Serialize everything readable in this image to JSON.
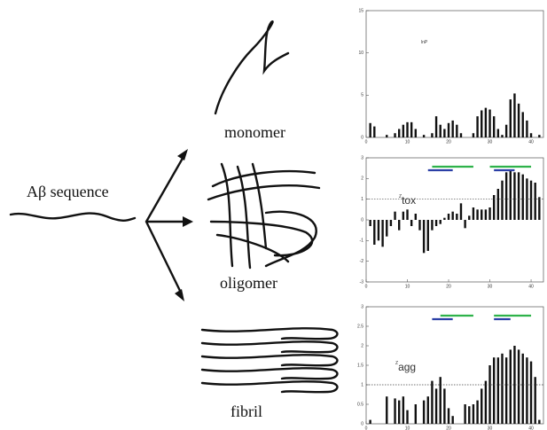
{
  "diagram": {
    "sequence_label": "Aβ sequence",
    "states": [
      "monomer",
      "oligomer",
      "fibril"
    ]
  },
  "chart_data": [
    {
      "type": "bar",
      "annotation": {
        "main": "lnP"
      },
      "x": [
        1,
        2,
        3,
        4,
        5,
        6,
        7,
        8,
        9,
        10,
        11,
        12,
        13,
        14,
        15,
        16,
        17,
        18,
        19,
        20,
        21,
        22,
        23,
        24,
        25,
        26,
        27,
        28,
        29,
        30,
        31,
        32,
        33,
        34,
        35,
        36,
        37,
        38,
        39,
        40,
        41,
        42
      ],
      "values": [
        1.7,
        1.3,
        0,
        0,
        0.3,
        0,
        0.5,
        1.0,
        1.5,
        1.8,
        1.8,
        1.0,
        0,
        0.3,
        0,
        0.5,
        2.5,
        1.5,
        1.0,
        1.7,
        2.0,
        1.5,
        0.5,
        0,
        0,
        0.5,
        2.5,
        3.2,
        3.5,
        3.3,
        2.5,
        1.0,
        0.3,
        1.5,
        4.5,
        5.2,
        4.0,
        3.0,
        2.0,
        0.5,
        0,
        0.3
      ],
      "color": "#111111",
      "xlim": [
        0,
        43
      ],
      "ylim": [
        0,
        15
      ],
      "xticks": [
        0,
        10,
        20,
        30,
        40
      ],
      "yticks": [
        0,
        5,
        10,
        15
      ]
    },
    {
      "type": "bar",
      "annotation": {
        "main": "Z",
        "sub": "tox"
      },
      "x": [
        1,
        2,
        3,
        4,
        5,
        6,
        7,
        8,
        9,
        10,
        11,
        12,
        13,
        14,
        15,
        16,
        17,
        18,
        19,
        20,
        21,
        22,
        23,
        24,
        25,
        26,
        27,
        28,
        29,
        30,
        31,
        32,
        33,
        34,
        35,
        36,
        37,
        38,
        39,
        40,
        41,
        42
      ],
      "values": [
        -0.3,
        -1.2,
        -1.0,
        -1.3,
        -0.8,
        -0.3,
        0.4,
        -0.5,
        0.4,
        0.5,
        -0.3,
        0.3,
        -0.5,
        -1.6,
        -1.5,
        -0.5,
        -0.3,
        -0.2,
        0.1,
        0.3,
        0.4,
        0.3,
        0.8,
        -0.4,
        0.2,
        0.6,
        0.5,
        0.5,
        0.5,
        0.6,
        1.2,
        1.5,
        1.9,
        2.3,
        2.4,
        2.3,
        2.3,
        2.2,
        2.0,
        1.9,
        1.8,
        1.1
      ],
      "color": "#111111",
      "xlim": [
        0,
        43
      ],
      "ylim": [
        -3,
        3
      ],
      "xticks": [
        0,
        10,
        20,
        30,
        40
      ],
      "yticks": [
        -3,
        -2,
        -1,
        0,
        1,
        2,
        3
      ],
      "reference_line": 1,
      "highlights": [
        {
          "color": "#2eb24a",
          "range": [
            16,
            26
          ]
        },
        {
          "color": "#2b3fa6",
          "range": [
            15,
            21
          ]
        },
        {
          "color": "#2eb24a",
          "range": [
            30,
            40
          ]
        },
        {
          "color": "#2b3fa6",
          "range": [
            31,
            36
          ]
        }
      ]
    },
    {
      "type": "bar",
      "annotation": {
        "main": "Z",
        "sub": "agg"
      },
      "x": [
        1,
        2,
        3,
        4,
        5,
        6,
        7,
        8,
        9,
        10,
        11,
        12,
        13,
        14,
        15,
        16,
        17,
        18,
        19,
        20,
        21,
        22,
        23,
        24,
        25,
        26,
        27,
        28,
        29,
        30,
        31,
        32,
        33,
        34,
        35,
        36,
        37,
        38,
        39,
        40,
        41,
        42
      ],
      "values": [
        0.1,
        0,
        0,
        0,
        0.7,
        0,
        0.65,
        0.6,
        0.7,
        0.35,
        0,
        0.5,
        0,
        0.6,
        0.7,
        1.1,
        0.9,
        1.2,
        0.9,
        0.4,
        0.2,
        0,
        0,
        0.5,
        0.45,
        0.5,
        0.6,
        0.9,
        1.1,
        1.5,
        1.7,
        1.7,
        1.8,
        1.7,
        1.9,
        2.0,
        1.9,
        1.8,
        1.7,
        1.6,
        1.2,
        0.1
      ],
      "color": "#111111",
      "xlim": [
        0,
        43
      ],
      "ylim": [
        0,
        3
      ],
      "xticks": [
        0,
        10,
        20,
        30,
        40
      ],
      "yticks": [
        0,
        0.5,
        1,
        1.5,
        2,
        2.5,
        3
      ],
      "reference_line": 1,
      "highlights": [
        {
          "color": "#2eb24a",
          "range": [
            18,
            26
          ]
        },
        {
          "color": "#2b3fa6",
          "range": [
            16,
            21
          ]
        },
        {
          "color": "#2eb24a",
          "range": [
            31,
            40
          ]
        },
        {
          "color": "#2b3fa6",
          "range": [
            31,
            35
          ]
        }
      ]
    }
  ]
}
